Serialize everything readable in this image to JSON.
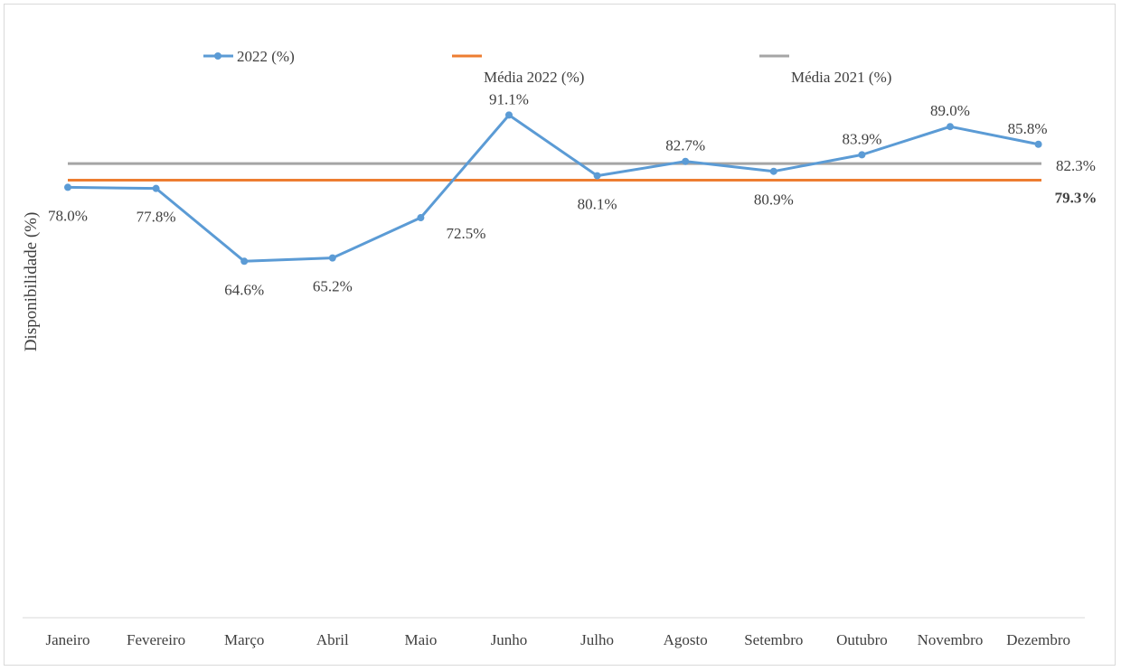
{
  "chart_data": {
    "type": "line",
    "categories": [
      "Janeiro",
      "Fevereiro",
      "Março",
      "Abril",
      "Maio",
      "Junho",
      "Julho",
      "Agosto",
      "Setembro",
      "Outubro",
      "Novembro",
      "Dezembro"
    ],
    "series": [
      {
        "name": "2022 (%)",
        "values": [
          78.0,
          77.8,
          64.6,
          65.2,
          72.5,
          91.1,
          80.1,
          82.7,
          80.9,
          83.9,
          89.0,
          85.8
        ],
        "labels": [
          "78.0%",
          "77.8%",
          "64.6%",
          "65.2%",
          "72.5%",
          "91.1%",
          "80.1%",
          "82.7%",
          "80.9%",
          "83.9%",
          "89.0%",
          "85.8%"
        ],
        "color": "#5b9bd5"
      }
    ],
    "reference_lines": [
      {
        "name": "Média 2022 (%)",
        "value": 79.3,
        "label": "79.3%",
        "color": "#ed7d31",
        "label_bold": true
      },
      {
        "name": "Média 2021 (%)",
        "value": 82.3,
        "label": "82.3%",
        "color": "#a5a5a5",
        "label_bold": false
      }
    ],
    "ylabel": "Disponibilidade (%)",
    "xlabel": "",
    "ylim": [
      0,
      100
    ],
    "grid": false,
    "legend_position": "top"
  }
}
